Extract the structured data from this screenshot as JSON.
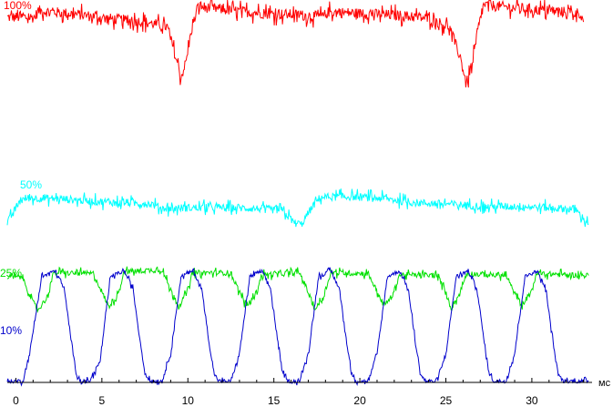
{
  "chart_data": {
    "type": "line",
    "title": "",
    "xlabel": "мс",
    "ylabel": "",
    "xlim": [
      -0.5,
      33.5
    ],
    "ylim": [
      0,
      100
    ],
    "x_ticks": [
      0,
      5,
      10,
      15,
      20,
      25,
      30
    ],
    "x_tick_labels": [
      "0",
      "5",
      "10",
      "15",
      "20",
      "25",
      "30"
    ],
    "grid": false,
    "series": [
      {
        "name": "100%",
        "color": "#ff0000",
        "noise": 1.4,
        "points": [
          [
            -0.5,
            95.5
          ],
          [
            1.1,
            95.5
          ],
          [
            1.3,
            97.2
          ],
          [
            3.5,
            96.3
          ],
          [
            5.5,
            95.1
          ],
          [
            7.5,
            94.3
          ],
          [
            8.8,
            93.0
          ],
          [
            9.3,
            85.0
          ],
          [
            9.6,
            79.8
          ],
          [
            9.9,
            84.0
          ],
          [
            10.2,
            92.0
          ],
          [
            10.6,
            98.3
          ],
          [
            12.5,
            97.3
          ],
          [
            14.5,
            96.5
          ],
          [
            16.5,
            96.1
          ],
          [
            17.8,
            95.6
          ],
          [
            18.2,
            96.9
          ],
          [
            20.5,
            96.4
          ],
          [
            22.5,
            95.9
          ],
          [
            24.0,
            95.2
          ],
          [
            25.2,
            93.0
          ],
          [
            25.8,
            85.5
          ],
          [
            26.2,
            78.5
          ],
          [
            26.5,
            82.0
          ],
          [
            26.9,
            93.0
          ],
          [
            27.2,
            98.7
          ],
          [
            29.5,
            97.8
          ],
          [
            31.5,
            97.0
          ],
          [
            32.8,
            96.6
          ],
          [
            33.0,
            94.3
          ]
        ]
      },
      {
        "name": "50%",
        "color": "#00ffff",
        "noise": 1.0,
        "points": [
          [
            -0.5,
            42.0
          ],
          [
            0.2,
            47.5
          ],
          [
            0.6,
            48.5
          ],
          [
            2.5,
            48.3
          ],
          [
            4.5,
            47.6
          ],
          [
            6.5,
            47.2
          ],
          [
            7.9,
            46.9
          ],
          [
            8.5,
            45.8
          ],
          [
            11.5,
            46.0
          ],
          [
            13.5,
            45.8
          ],
          [
            14.5,
            45.6
          ],
          [
            15.5,
            45.2
          ],
          [
            16.2,
            42.0
          ],
          [
            16.6,
            41.6
          ],
          [
            17.2,
            46.0
          ],
          [
            17.7,
            48.7
          ],
          [
            19.5,
            48.8
          ],
          [
            21.5,
            48.3
          ],
          [
            23.0,
            47.3
          ],
          [
            25.5,
            46.8
          ],
          [
            27.5,
            46.2
          ],
          [
            29.5,
            46.3
          ],
          [
            31.5,
            45.8
          ],
          [
            32.5,
            45.6
          ],
          [
            33.3,
            41.6
          ]
        ]
      },
      {
        "name": "25%",
        "color": "#00e000",
        "noise": 0.7,
        "points": [
          [
            -0.5,
            27.9
          ],
          [
            0.4,
            27.9
          ],
          [
            0.9,
            22.0
          ],
          [
            1.3,
            19.4
          ],
          [
            1.8,
            22.5
          ],
          [
            2.2,
            29.0
          ],
          [
            4.5,
            28.8
          ],
          [
            4.9,
            25.0
          ],
          [
            5.4,
            20.2
          ],
          [
            5.9,
            23.0
          ],
          [
            6.3,
            29.3
          ],
          [
            8.5,
            29.8
          ],
          [
            9.0,
            24.5
          ],
          [
            9.5,
            20.4
          ],
          [
            9.9,
            23.5
          ],
          [
            10.3,
            29.0
          ],
          [
            12.5,
            29.0
          ],
          [
            12.9,
            25.0
          ],
          [
            13.4,
            20.4
          ],
          [
            13.9,
            23.0
          ],
          [
            14.3,
            28.5
          ],
          [
            16.5,
            29.0
          ],
          [
            16.9,
            25.0
          ],
          [
            17.4,
            19.4
          ],
          [
            17.9,
            23.0
          ],
          [
            18.3,
            29.0
          ],
          [
            20.5,
            28.8
          ],
          [
            20.9,
            25.0
          ],
          [
            21.4,
            20.5
          ],
          [
            21.9,
            23.0
          ],
          [
            22.3,
            28.5
          ],
          [
            24.5,
            28.3
          ],
          [
            24.9,
            25.0
          ],
          [
            25.3,
            19.8
          ],
          [
            25.8,
            23.5
          ],
          [
            26.2,
            28.8
          ],
          [
            28.5,
            28.3
          ],
          [
            28.9,
            24.5
          ],
          [
            29.4,
            20.6
          ],
          [
            29.9,
            23.5
          ],
          [
            30.3,
            28.8
          ],
          [
            33.3,
            28.3
          ]
        ]
      },
      {
        "name": "10%",
        "color": "#0000cc",
        "noise": 0.5,
        "points": [
          [
            -0.5,
            0.8
          ],
          [
            0.4,
            0.8
          ],
          [
            0.8,
            8.0
          ],
          [
            1.5,
            28.0
          ],
          [
            2.3,
            29.5
          ],
          [
            2.8,
            25.0
          ],
          [
            3.2,
            12.0
          ],
          [
            3.5,
            3.0
          ],
          [
            3.8,
            0.8
          ],
          [
            4.3,
            0.8
          ],
          [
            4.9,
            6.0
          ],
          [
            5.5,
            28.0
          ],
          [
            6.3,
            29.5
          ],
          [
            6.8,
            25.0
          ],
          [
            7.2,
            12.0
          ],
          [
            7.5,
            3.0
          ],
          [
            7.8,
            0.8
          ],
          [
            8.5,
            0.8
          ],
          [
            9.0,
            8.0
          ],
          [
            9.6,
            28.0
          ],
          [
            10.3,
            29.5
          ],
          [
            10.8,
            25.0
          ],
          [
            11.2,
            12.0
          ],
          [
            11.5,
            3.0
          ],
          [
            11.8,
            0.8
          ],
          [
            12.5,
            0.8
          ],
          [
            13.0,
            8.0
          ],
          [
            13.6,
            28.0
          ],
          [
            14.3,
            29.5
          ],
          [
            14.8,
            25.0
          ],
          [
            15.2,
            12.0
          ],
          [
            15.5,
            3.0
          ],
          [
            15.8,
            0.8
          ],
          [
            16.5,
            0.8
          ],
          [
            17.0,
            8.0
          ],
          [
            17.6,
            28.0
          ],
          [
            18.3,
            29.5
          ],
          [
            18.8,
            25.0
          ],
          [
            19.2,
            12.0
          ],
          [
            19.5,
            3.0
          ],
          [
            19.8,
            0.8
          ],
          [
            20.5,
            0.8
          ],
          [
            21.0,
            8.0
          ],
          [
            21.6,
            28.0
          ],
          [
            22.3,
            29.5
          ],
          [
            22.8,
            25.0
          ],
          [
            23.2,
            12.0
          ],
          [
            23.5,
            3.0
          ],
          [
            23.8,
            0.8
          ],
          [
            24.5,
            0.8
          ],
          [
            25.0,
            8.0
          ],
          [
            25.6,
            28.0
          ],
          [
            26.3,
            29.5
          ],
          [
            26.8,
            25.0
          ],
          [
            27.2,
            12.0
          ],
          [
            27.5,
            3.0
          ],
          [
            27.8,
            0.8
          ],
          [
            28.5,
            0.8
          ],
          [
            29.0,
            8.0
          ],
          [
            29.6,
            28.0
          ],
          [
            30.3,
            29.5
          ],
          [
            30.8,
            25.0
          ],
          [
            31.2,
            12.0
          ],
          [
            31.5,
            3.0
          ],
          [
            31.8,
            0.8
          ],
          [
            33.3,
            0.8
          ]
        ]
      }
    ]
  }
}
